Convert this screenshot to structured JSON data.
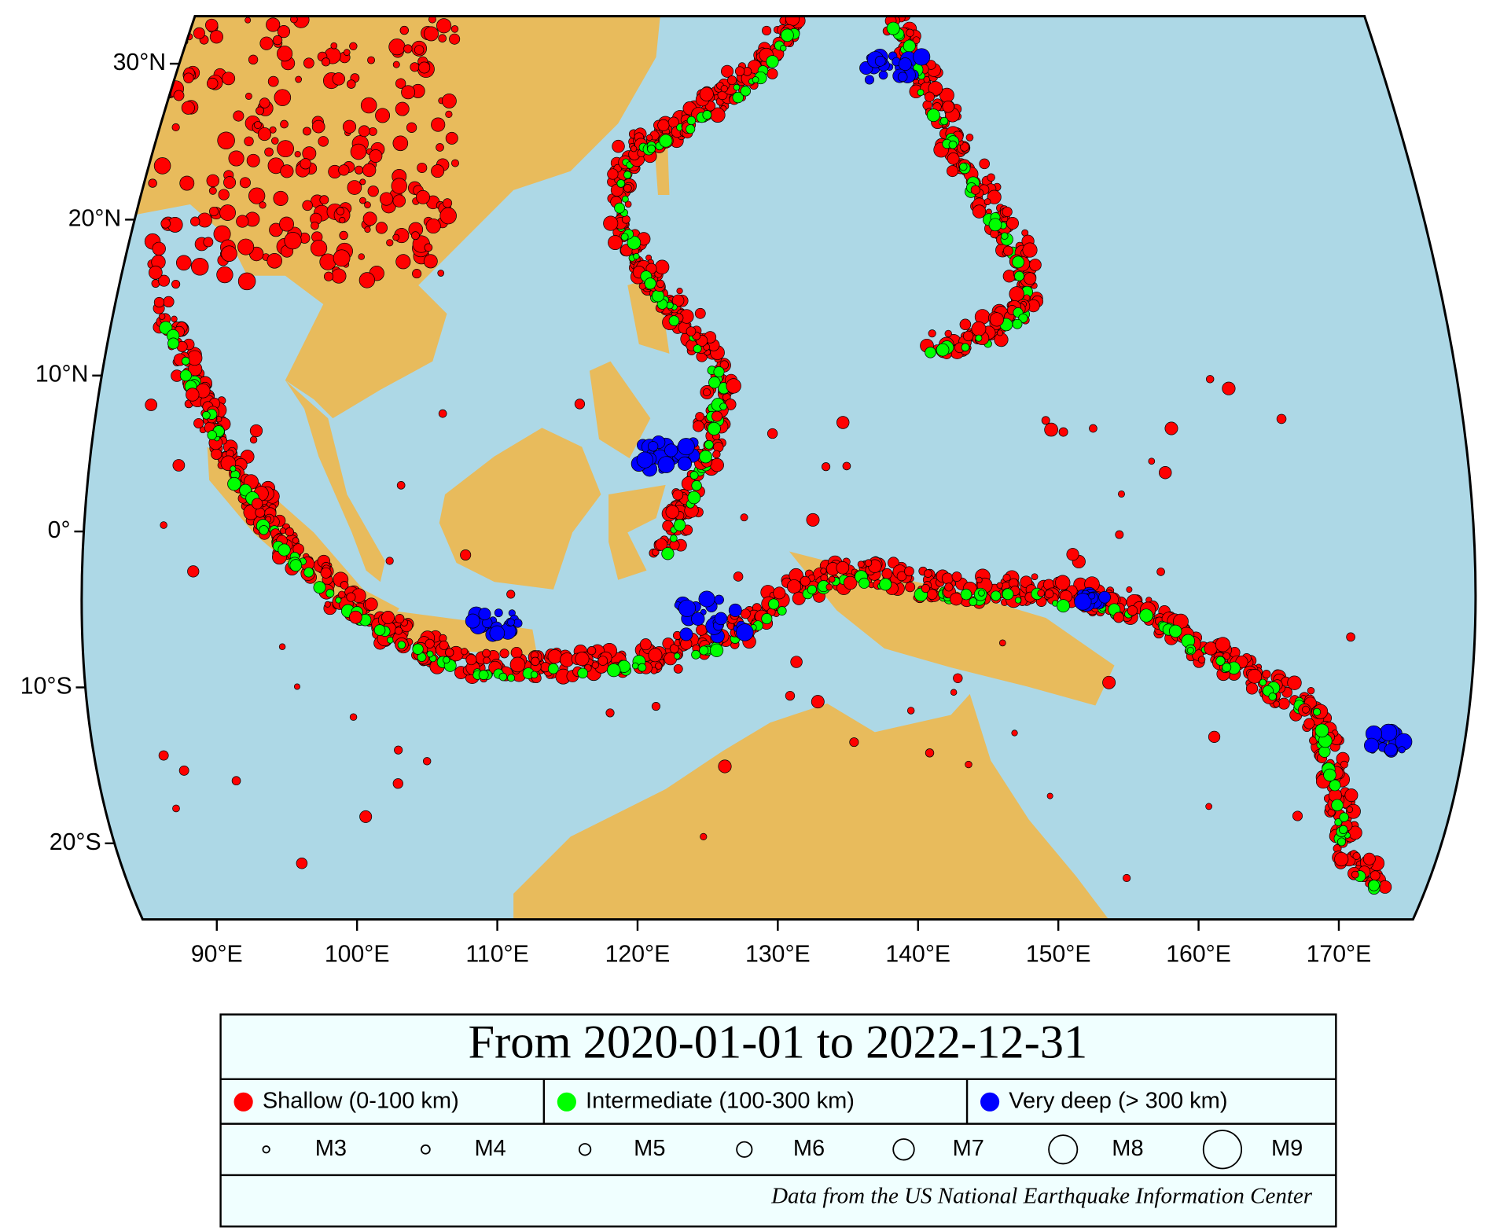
{
  "map": {
    "lat_ticks": [
      {
        "value": 30,
        "label": "30°N"
      },
      {
        "value": 20,
        "label": "20°N"
      },
      {
        "value": 10,
        "label": "10°N"
      },
      {
        "value": 0,
        "label": "0°"
      },
      {
        "value": -10,
        "label": "10°S"
      },
      {
        "value": -20,
        "label": "20°S"
      }
    ],
    "lon_ticks": [
      {
        "value": 90,
        "label": "90°E"
      },
      {
        "value": 100,
        "label": "100°E"
      },
      {
        "value": 110,
        "label": "110°E"
      },
      {
        "value": 120,
        "label": "120°E"
      },
      {
        "value": 130,
        "label": "130°E"
      },
      {
        "value": 140,
        "label": "140°E"
      },
      {
        "value": 150,
        "label": "150°E"
      },
      {
        "value": 160,
        "label": "160°E"
      },
      {
        "value": 170,
        "label": "170°E"
      }
    ]
  },
  "legend": {
    "title": "From 2020-01-01 to 2022-12-31",
    "depth_classes": [
      {
        "label": "Shallow (0-100 km)",
        "color": "#ff0000"
      },
      {
        "label": "Intermediate (100-300 km)",
        "color": "#00ff00"
      },
      {
        "label": "Very deep (> 300 km)",
        "color": "#0000ff"
      }
    ],
    "magnitudes": [
      "M3",
      "M4",
      "M5",
      "M6",
      "M7",
      "M8",
      "M9"
    ],
    "credit": "Data from the US National Earthquake Information Center"
  }
}
